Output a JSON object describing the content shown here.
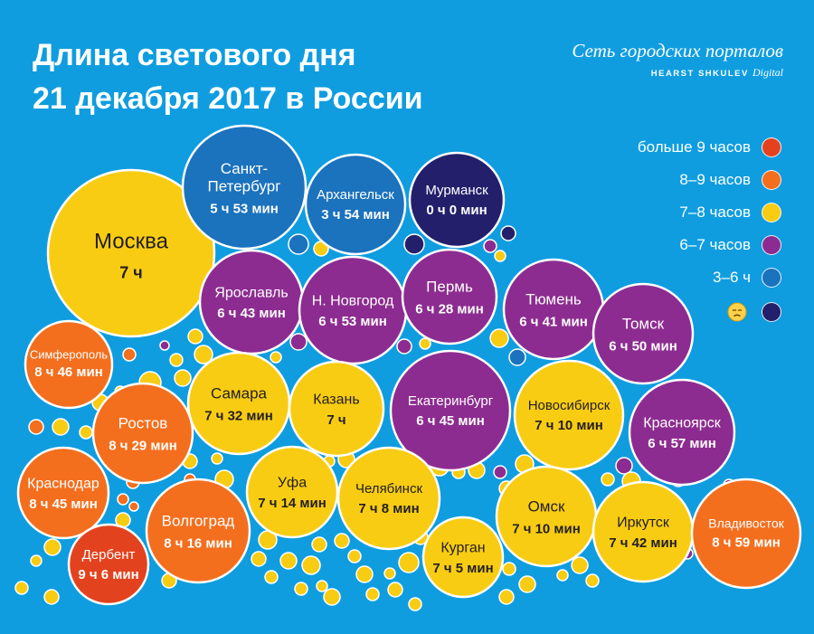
{
  "title_line1": "Длина светового дня",
  "title_line2": "21 декабря 2017 в России",
  "brand": {
    "line1": "Сеть городских порталов",
    "line2": "HEARST SHKULEV",
    "line2_suffix": "Digital"
  },
  "colors": {
    "background": "#0f9de0",
    "over_9": "#e3421e",
    "h8_9": "#f36f1e",
    "h7_8": "#f8cc13",
    "h6_7": "#8d2c90",
    "h3_6": "#1b72bd",
    "under_3": "#241f6b",
    "text_dark": "#231f20",
    "text_light": "#ffffff"
  },
  "legend": [
    {
      "label": "больше 9 часов",
      "category": "over_9"
    },
    {
      "label": "8–9 часов",
      "category": "h8_9"
    },
    {
      "label": "7–8 часов",
      "category": "h7_8"
    },
    {
      "label": "6–7 часов",
      "category": "h6_7"
    },
    {
      "label": "3–6 ч",
      "category": "h3_6"
    },
    {
      "label": "",
      "category": "under_3",
      "icon": "sad-face-emoji-icon"
    }
  ],
  "chart_data": {
    "type": "bubble",
    "title": "Длина светового дня 21 декабря 2017 в России",
    "value_unit": "daylight duration",
    "series": [
      {
        "city": "Москва",
        "label": "7 ч",
        "hours": 7,
        "minutes": 0,
        "category": "h7_8"
      },
      {
        "city": "Санкт-Петербург",
        "label": "5 ч 53 мин",
        "hours": 5,
        "minutes": 53,
        "category": "h3_6"
      },
      {
        "city": "Архангельск",
        "label": "3 ч 54 мин",
        "hours": 3,
        "minutes": 54,
        "category": "h3_6"
      },
      {
        "city": "Мурманск",
        "label": "0 ч 0 мин",
        "hours": 0,
        "minutes": 0,
        "category": "under_3"
      },
      {
        "city": "Ярославль",
        "label": "6 ч 43 мин",
        "hours": 6,
        "minutes": 43,
        "category": "h6_7"
      },
      {
        "city": "Н. Новгород",
        "label": "6 ч 53 мин",
        "hours": 6,
        "minutes": 53,
        "category": "h6_7"
      },
      {
        "city": "Пермь",
        "label": "6 ч 28 мин",
        "hours": 6,
        "minutes": 28,
        "category": "h6_7"
      },
      {
        "city": "Тюмень",
        "label": "6 ч 41 мин",
        "hours": 6,
        "minutes": 41,
        "category": "h6_7"
      },
      {
        "city": "Томск",
        "label": "6 ч 50 мин",
        "hours": 6,
        "minutes": 50,
        "category": "h6_7"
      },
      {
        "city": "Симферополь",
        "label": "8 ч 46 мин",
        "hours": 8,
        "minutes": 46,
        "category": "h8_9"
      },
      {
        "city": "Самара",
        "label": "7 ч 32 мин",
        "hours": 7,
        "minutes": 32,
        "category": "h7_8"
      },
      {
        "city": "Казань",
        "label": "7 ч",
        "hours": 7,
        "minutes": 0,
        "category": "h7_8"
      },
      {
        "city": "Екатеринбург",
        "label": "6 ч 45 мин",
        "hours": 6,
        "minutes": 45,
        "category": "h6_7"
      },
      {
        "city": "Новосибирск",
        "label": "7 ч 10 мин",
        "hours": 7,
        "minutes": 10,
        "category": "h7_8"
      },
      {
        "city": "Красноярск",
        "label": "6 ч 57 мин",
        "hours": 6,
        "minutes": 57,
        "category": "h6_7"
      },
      {
        "city": "Ростов",
        "label": "8 ч 29 мин",
        "hours": 8,
        "minutes": 29,
        "category": "h8_9"
      },
      {
        "city": "Краснодар",
        "label": "8 ч 45 мин",
        "hours": 8,
        "minutes": 45,
        "category": "h8_9"
      },
      {
        "city": "Уфа",
        "label": "7 ч 14 мин",
        "hours": 7,
        "minutes": 14,
        "category": "h7_8"
      },
      {
        "city": "Челябинск",
        "label": "7 ч 8 мин",
        "hours": 7,
        "minutes": 8,
        "category": "h7_8"
      },
      {
        "city": "Омск",
        "label": "7 ч 10 мин",
        "hours": 7,
        "minutes": 10,
        "category": "h7_8"
      },
      {
        "city": "Иркутск",
        "label": "7 ч 42 мин",
        "hours": 7,
        "minutes": 42,
        "category": "h7_8"
      },
      {
        "city": "Владивосток",
        "label": "8 ч 59 мин",
        "hours": 8,
        "minutes": 59,
        "category": "h8_9"
      },
      {
        "city": "Волгоград",
        "label": "8 ч 16 мин",
        "hours": 8,
        "minutes": 16,
        "category": "h8_9"
      },
      {
        "city": "Дербент",
        "label": "9 ч 6 мин",
        "hours": 9,
        "minutes": 6,
        "category": "over_9"
      },
      {
        "city": "Курган",
        "label": "7 ч 5 мин",
        "hours": 7,
        "minutes": 5,
        "category": "h7_8"
      }
    ]
  }
}
